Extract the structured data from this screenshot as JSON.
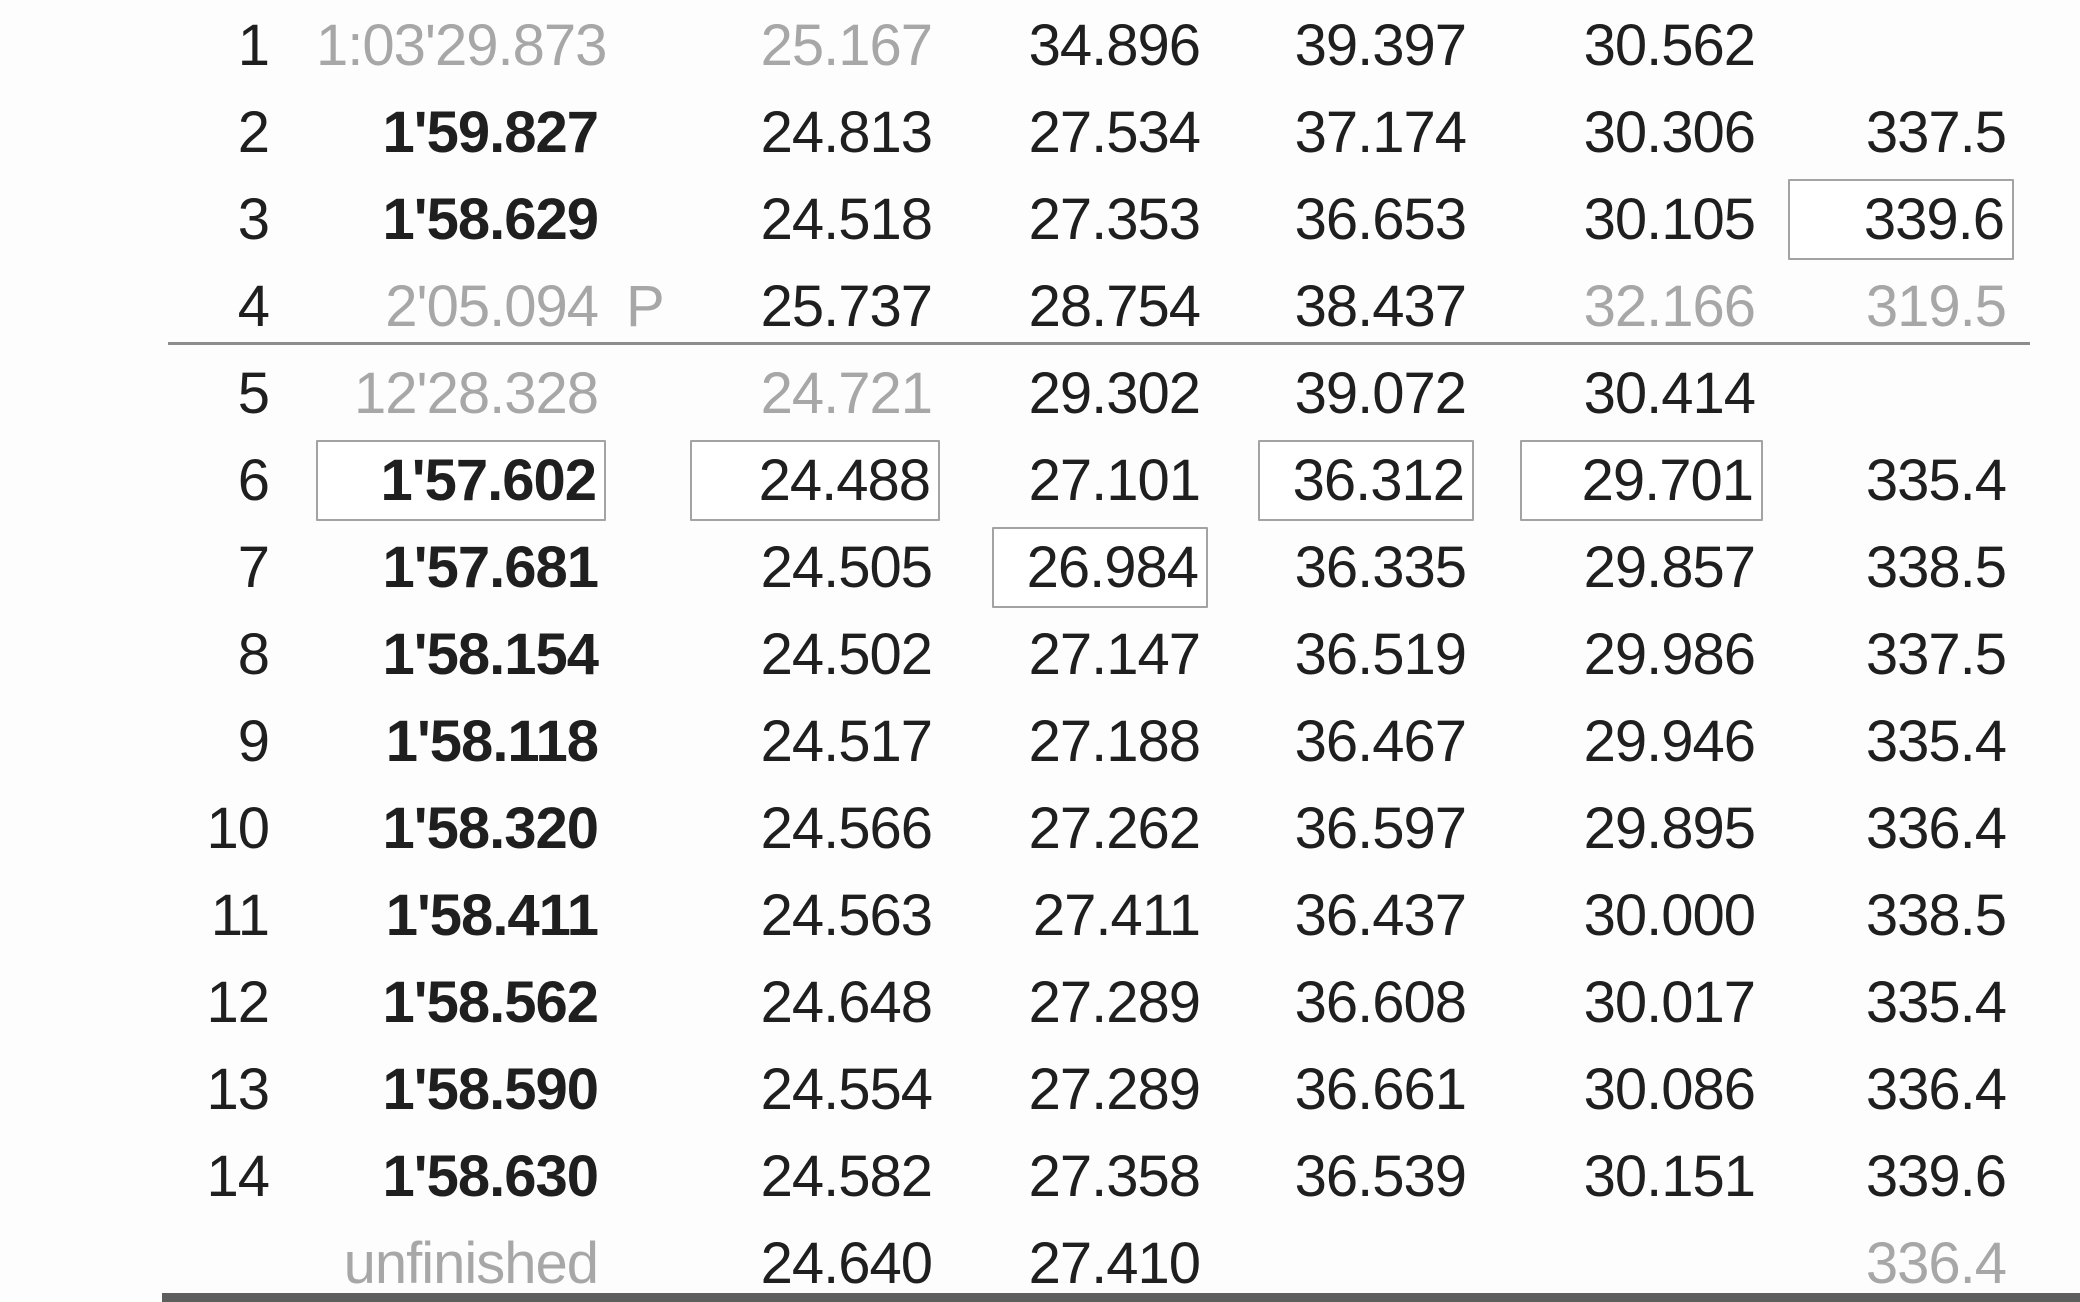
{
  "table": {
    "type": "table",
    "description_columns": [
      "lap-number",
      "lap-time",
      "pit-marker",
      "sector1",
      "sector2",
      "sector3",
      "sector4",
      "top-speed"
    ],
    "rows": [
      {
        "lap": "1",
        "time": {
          "t": "1:03'29.873",
          "gray": true
        },
        "s1": {
          "t": "25.167",
          "gray": true
        },
        "s2": {
          "t": "34.896"
        },
        "s3": {
          "t": "39.397"
        },
        "s4": {
          "t": "30.562"
        }
      },
      {
        "lap": "2",
        "time": {
          "t": "1'59.827",
          "bold": true
        },
        "s1": {
          "t": "24.813"
        },
        "s2": {
          "t": "27.534"
        },
        "s3": {
          "t": "37.174"
        },
        "s4": {
          "t": "30.306"
        },
        "speed": {
          "t": "337.5"
        }
      },
      {
        "lap": "3",
        "time": {
          "t": "1'58.629",
          "bold": true
        },
        "s1": {
          "t": "24.518"
        },
        "s2": {
          "t": "27.353"
        },
        "s3": {
          "t": "36.653"
        },
        "s4": {
          "t": "30.105"
        },
        "speed": {
          "t": "339.6",
          "boxed": true
        }
      },
      {
        "lap": "4",
        "time": {
          "t": "2'05.094",
          "gray": true
        },
        "pit": "P",
        "s1": {
          "t": "25.737"
        },
        "s2": {
          "t": "28.754"
        },
        "s3": {
          "t": "38.437"
        },
        "s4": {
          "t": "32.166",
          "gray": true
        },
        "speed": {
          "t": "319.5",
          "gray": true
        }
      },
      {
        "lap": "5",
        "time": {
          "t": "12'28.328",
          "gray": true
        },
        "s1": {
          "t": "24.721",
          "gray": true
        },
        "s2": {
          "t": "29.302"
        },
        "s3": {
          "t": "39.072"
        },
        "s4": {
          "t": "30.414"
        }
      },
      {
        "lap": "6",
        "time": {
          "t": "1'57.602",
          "bold": true,
          "boxed": true
        },
        "s1": {
          "t": "24.488",
          "boxed": true
        },
        "s2": {
          "t": "27.101"
        },
        "s3": {
          "t": "36.312",
          "boxed": true
        },
        "s4": {
          "t": "29.701",
          "boxed": true
        },
        "speed": {
          "t": "335.4"
        }
      },
      {
        "lap": "7",
        "time": {
          "t": "1'57.681",
          "bold": true
        },
        "s1": {
          "t": "24.505"
        },
        "s2": {
          "t": "26.984",
          "boxed": true
        },
        "s3": {
          "t": "36.335"
        },
        "s4": {
          "t": "29.857"
        },
        "speed": {
          "t": "338.5"
        }
      },
      {
        "lap": "8",
        "time": {
          "t": "1'58.154",
          "bold": true
        },
        "s1": {
          "t": "24.502"
        },
        "s2": {
          "t": "27.147"
        },
        "s3": {
          "t": "36.519"
        },
        "s4": {
          "t": "29.986"
        },
        "speed": {
          "t": "337.5"
        }
      },
      {
        "lap": "9",
        "time": {
          "t": "1'58.118",
          "bold": true
        },
        "s1": {
          "t": "24.517"
        },
        "s2": {
          "t": "27.188"
        },
        "s3": {
          "t": "36.467"
        },
        "s4": {
          "t": "29.946"
        },
        "speed": {
          "t": "335.4"
        }
      },
      {
        "lap": "10",
        "time": {
          "t": "1'58.320",
          "bold": true
        },
        "s1": {
          "t": "24.566"
        },
        "s2": {
          "t": "27.262"
        },
        "s3": {
          "t": "36.597"
        },
        "s4": {
          "t": "29.895"
        },
        "speed": {
          "t": "336.4"
        }
      },
      {
        "lap": "11",
        "time": {
          "t": "1'58.411",
          "bold": true
        },
        "s1": {
          "t": "24.563"
        },
        "s2": {
          "t": "27.411"
        },
        "s3": {
          "t": "36.437"
        },
        "s4": {
          "t": "30.000"
        },
        "speed": {
          "t": "338.5"
        }
      },
      {
        "lap": "12",
        "time": {
          "t": "1'58.562",
          "bold": true
        },
        "s1": {
          "t": "24.648"
        },
        "s2": {
          "t": "27.289"
        },
        "s3": {
          "t": "36.608"
        },
        "s4": {
          "t": "30.017"
        },
        "speed": {
          "t": "335.4"
        }
      },
      {
        "lap": "13",
        "time": {
          "t": "1'58.590",
          "bold": true
        },
        "s1": {
          "t": "24.554"
        },
        "s2": {
          "t": "27.289"
        },
        "s3": {
          "t": "36.661"
        },
        "s4": {
          "t": "30.086"
        },
        "speed": {
          "t": "336.4"
        }
      },
      {
        "lap": "14",
        "time": {
          "t": "1'58.630",
          "bold": true
        },
        "s1": {
          "t": "24.582"
        },
        "s2": {
          "t": "27.358"
        },
        "s3": {
          "t": "36.539"
        },
        "s4": {
          "t": "30.151"
        },
        "speed": {
          "t": "339.6"
        }
      },
      {
        "lap": "",
        "time": {
          "t": "unfinished",
          "gray": true
        },
        "s1": {
          "t": "24.640"
        },
        "s2": {
          "t": "27.410"
        },
        "speed": {
          "t": "336.4",
          "gray": true
        }
      }
    ]
  },
  "colors": {
    "text_primary": "#1f1f1f",
    "text_muted": "#a7a7a7",
    "best_box_border": "#a3a3a3",
    "divider_top": "#8d8d8d",
    "divider_bottom": "#5e5e5e",
    "background": "#fdfdfd"
  }
}
